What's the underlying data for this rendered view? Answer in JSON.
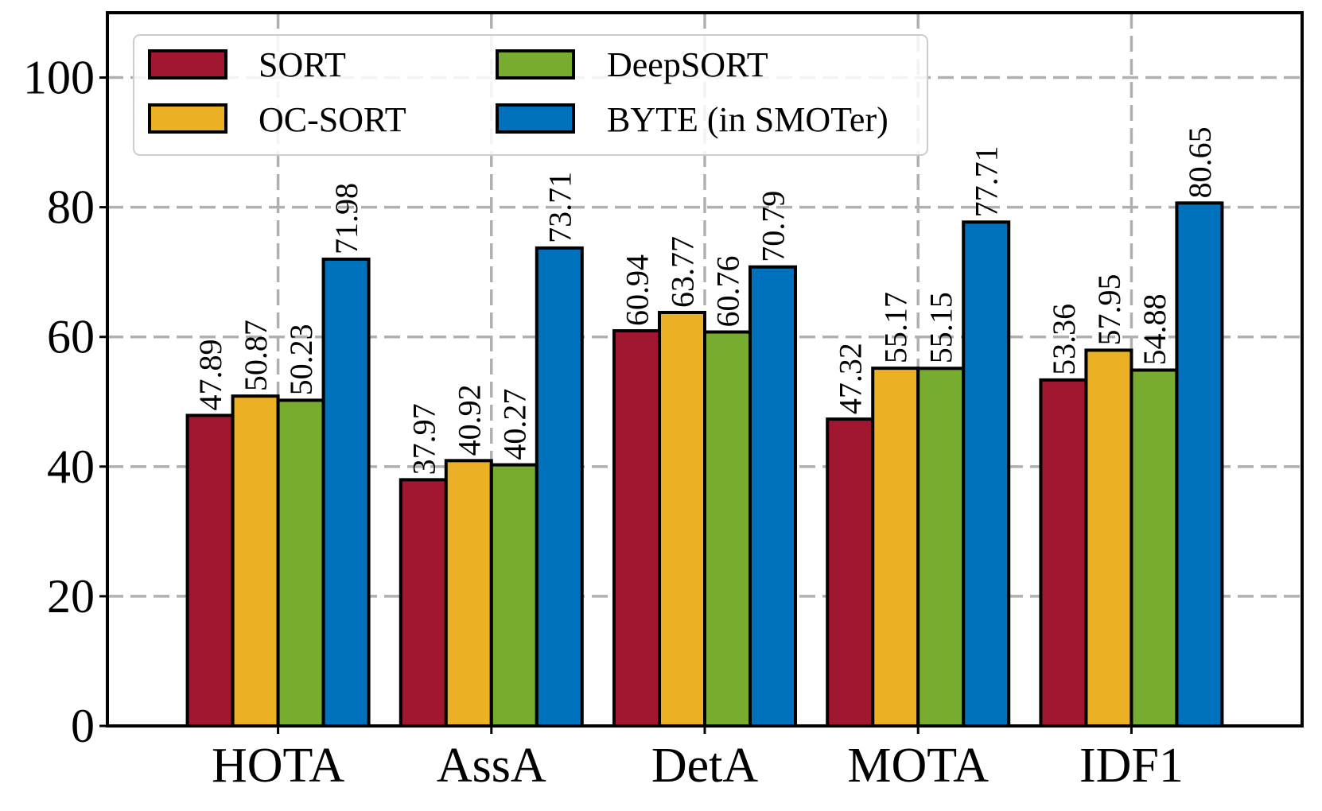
{
  "chart_data": {
    "type": "bar",
    "title": "",
    "xlabel": "",
    "ylabel": "",
    "ylim": [
      0,
      110
    ],
    "yticks": [
      "0",
      "20",
      "40",
      "60",
      "80",
      "100"
    ],
    "grid": true,
    "legend_position": "upper-left",
    "categories": [
      "HOTA",
      "AssA",
      "DetA",
      "MOTA",
      "IDF1"
    ],
    "series": [
      {
        "name": "SORT",
        "color": "#A0172F",
        "values": [
          47.89,
          37.97,
          60.94,
          47.32,
          53.36
        ],
        "labels": [
          "47.89",
          "37.97",
          "60.94",
          "47.32",
          "53.36"
        ]
      },
      {
        "name": "OC-SORT",
        "color": "#EBB024",
        "values": [
          50.87,
          40.92,
          63.77,
          55.17,
          57.95
        ],
        "labels": [
          "50.87",
          "40.92",
          "63.77",
          "55.17",
          "57.95"
        ]
      },
      {
        "name": "DeepSORT",
        "color": "#77AC30",
        "values": [
          50.23,
          40.27,
          60.76,
          55.15,
          54.88
        ],
        "labels": [
          "50.23",
          "40.27",
          "60.76",
          "55.15",
          "54.88"
        ]
      },
      {
        "name": "BYTE (in SMOTer)",
        "color": "#0072BD",
        "values": [
          71.98,
          73.71,
          70.79,
          77.71,
          80.65
        ],
        "labels": [
          "71.98",
          "73.71",
          "70.79",
          "77.71",
          "80.65"
        ]
      }
    ]
  }
}
